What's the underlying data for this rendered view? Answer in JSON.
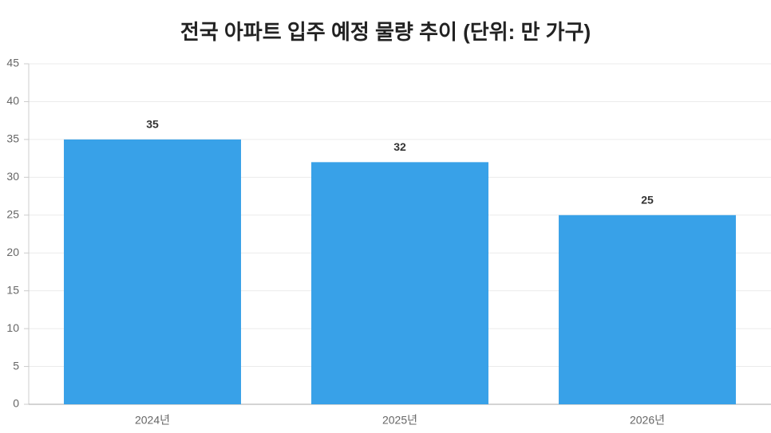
{
  "chart_data": {
    "type": "bar",
    "title": "전국 아파트 입주 예정 물량 추이 (단위: 만 가구)",
    "categories": [
      "2024년",
      "2025년",
      "2026년"
    ],
    "values": [
      35,
      32,
      25
    ],
    "color": "#38a1e8",
    "ylim": [
      0,
      45
    ],
    "yticks": [
      0,
      5,
      10,
      15,
      20,
      25,
      30,
      35,
      40,
      45
    ],
    "grid": true
  }
}
